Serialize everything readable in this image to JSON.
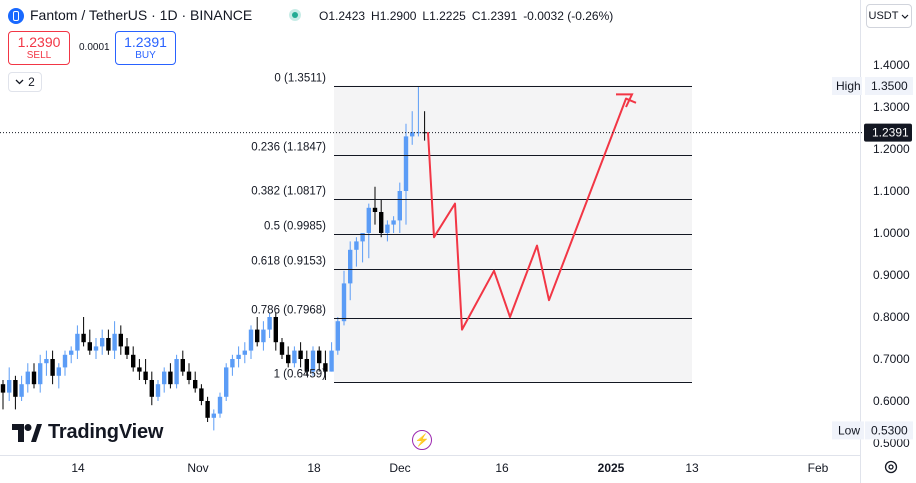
{
  "header": {
    "symbol_title": "Fantom / TetherUS · 1D · BINANCE",
    "ohlc": {
      "open": "O1.2423",
      "high": "H1.2900",
      "low": "L1.2225",
      "close": "C1.2391",
      "change": "-0.0032 (-0.26%)"
    }
  },
  "trade": {
    "sell_price": "1.2390",
    "sell_label": "SELL",
    "spread": "0.0001",
    "buy_price": "1.2391",
    "buy_label": "BUY"
  },
  "indicators": {
    "count": "2"
  },
  "currency": {
    "label": "USDT"
  },
  "branding": {
    "logo_text": "TradingView"
  },
  "colors": {
    "up": "#5b9cf6",
    "down": "#000000",
    "projection": "#f23645",
    "fib_line": "#131722",
    "accent": "#2962ff"
  },
  "icons": [
    "fantom-icon",
    "market-open-icon",
    "chevron-down-icon",
    "tradingview-logo-icon",
    "lightning-icon",
    "settings-icon"
  ],
  "chart_data": {
    "type": "candlestick",
    "yaxis": {
      "ticks": [
        "1.4000",
        "1.3000",
        "1.2000",
        "1.1000",
        "1.0000",
        "0.9000",
        "0.8000",
        "0.7000",
        "0.6000",
        "0.5000"
      ],
      "range": [
        0.49,
        1.43
      ],
      "side": "right"
    },
    "xaxis": {
      "ticks": [
        "14",
        "Nov",
        "18",
        "Dec",
        "16",
        "2025",
        "13",
        "Feb"
      ]
    },
    "last_price": "1.2391",
    "high_marker": {
      "label": "High",
      "value": "1.3500"
    },
    "low_marker": {
      "label": "Low",
      "value": "0.5300"
    },
    "fibonacci": [
      {
        "label": "0 (1.3511)",
        "level": 1.3511
      },
      {
        "label": "0.236 (1.1847)",
        "level": 1.1847
      },
      {
        "label": "0.382 (1.0817)",
        "level": 1.0817
      },
      {
        "label": "0.5 (0.9985)",
        "level": 0.9985
      },
      {
        "label": "0.618 (0.9153)",
        "level": 0.9153
      },
      {
        "label": "0.786 (0.7968)",
        "level": 0.7968
      },
      {
        "label": "1 (0.6459)",
        "level": 0.6459
      }
    ],
    "candles": [
      [
        0.64,
        0.65,
        0.58,
        0.62
      ],
      [
        0.62,
        0.68,
        0.6,
        0.65
      ],
      [
        0.65,
        0.66,
        0.58,
        0.61
      ],
      [
        0.61,
        0.66,
        0.6,
        0.64
      ],
      [
        0.64,
        0.69,
        0.62,
        0.67
      ],
      [
        0.67,
        0.69,
        0.63,
        0.64
      ],
      [
        0.64,
        0.71,
        0.62,
        0.69
      ],
      [
        0.69,
        0.72,
        0.66,
        0.7
      ],
      [
        0.7,
        0.72,
        0.64,
        0.66
      ],
      [
        0.66,
        0.69,
        0.63,
        0.68
      ],
      [
        0.68,
        0.72,
        0.66,
        0.71
      ],
      [
        0.71,
        0.73,
        0.69,
        0.72
      ],
      [
        0.72,
        0.78,
        0.7,
        0.76
      ],
      [
        0.76,
        0.8,
        0.73,
        0.74
      ],
      [
        0.74,
        0.77,
        0.71,
        0.72
      ],
      [
        0.72,
        0.75,
        0.7,
        0.73
      ],
      [
        0.73,
        0.77,
        0.71,
        0.75
      ],
      [
        0.75,
        0.77,
        0.71,
        0.72
      ],
      [
        0.72,
        0.79,
        0.7,
        0.76
      ],
      [
        0.76,
        0.78,
        0.71,
        0.73
      ],
      [
        0.73,
        0.75,
        0.7,
        0.71
      ],
      [
        0.71,
        0.73,
        0.67,
        0.68
      ],
      [
        0.68,
        0.7,
        0.65,
        0.67
      ],
      [
        0.67,
        0.7,
        0.64,
        0.65
      ],
      [
        0.65,
        0.67,
        0.59,
        0.61
      ],
      [
        0.61,
        0.65,
        0.6,
        0.64
      ],
      [
        0.64,
        0.68,
        0.62,
        0.67
      ],
      [
        0.67,
        0.69,
        0.63,
        0.64
      ],
      [
        0.64,
        0.71,
        0.63,
        0.7
      ],
      [
        0.7,
        0.72,
        0.66,
        0.67
      ],
      [
        0.67,
        0.69,
        0.64,
        0.65
      ],
      [
        0.65,
        0.67,
        0.62,
        0.63
      ],
      [
        0.63,
        0.64,
        0.59,
        0.6
      ],
      [
        0.6,
        0.61,
        0.55,
        0.56
      ],
      [
        0.56,
        0.58,
        0.53,
        0.57
      ],
      [
        0.57,
        0.62,
        0.56,
        0.61
      ],
      [
        0.61,
        0.69,
        0.6,
        0.68
      ],
      [
        0.68,
        0.71,
        0.66,
        0.7
      ],
      [
        0.7,
        0.73,
        0.68,
        0.71
      ],
      [
        0.71,
        0.74,
        0.69,
        0.72
      ],
      [
        0.72,
        0.78,
        0.7,
        0.77
      ],
      [
        0.77,
        0.8,
        0.73,
        0.74
      ],
      [
        0.74,
        0.79,
        0.72,
        0.77
      ],
      [
        0.77,
        0.81,
        0.75,
        0.8
      ],
      [
        0.8,
        0.81,
        0.72,
        0.74
      ],
      [
        0.74,
        0.75,
        0.7,
        0.71
      ],
      [
        0.71,
        0.73,
        0.68,
        0.69
      ],
      [
        0.69,
        0.73,
        0.68,
        0.72
      ],
      [
        0.72,
        0.74,
        0.68,
        0.7
      ],
      [
        0.7,
        0.72,
        0.66,
        0.67
      ],
      [
        0.67,
        0.73,
        0.66,
        0.72
      ],
      [
        0.72,
        0.73,
        0.67,
        0.69
      ],
      [
        0.69,
        0.72,
        0.65,
        0.67
      ],
      [
        0.67,
        0.74,
        0.67,
        0.72
      ],
      [
        0.72,
        0.8,
        0.71,
        0.79
      ],
      [
        0.79,
        0.91,
        0.78,
        0.88
      ],
      [
        0.88,
        0.98,
        0.84,
        0.96
      ],
      [
        0.96,
        0.99,
        0.92,
        0.98
      ],
      [
        0.98,
        1.0,
        0.93,
        1.0
      ],
      [
        1.0,
        1.07,
        0.94,
        1.06
      ],
      [
        1.06,
        1.11,
        1.02,
        1.05
      ],
      [
        1.05,
        1.08,
        0.99,
        1.0
      ],
      [
        1.0,
        1.03,
        0.98,
        1.02
      ],
      [
        1.02,
        1.04,
        1.0,
        1.03
      ],
      [
        1.03,
        1.12,
        1.0,
        1.1
      ],
      [
        1.1,
        1.26,
        1.02,
        1.23
      ],
      [
        1.23,
        1.29,
        1.21,
        1.24
      ],
      [
        1.24,
        1.35,
        1.23,
        1.24
      ],
      [
        1.24,
        1.29,
        1.22,
        1.239
      ]
    ],
    "projection": [
      [
        1.24,
        1.23
      ],
      [
        0.99,
        0.99
      ],
      [
        1.07,
        1.07
      ],
      [
        0.77,
        0.77
      ],
      [
        0.91,
        0.91
      ],
      [
        0.8,
        0.8
      ],
      [
        0.97,
        0.97
      ],
      [
        0.84,
        0.84
      ],
      [
        1.32,
        1.32
      ],
      [
        1.31,
        1.31
      ]
    ]
  }
}
